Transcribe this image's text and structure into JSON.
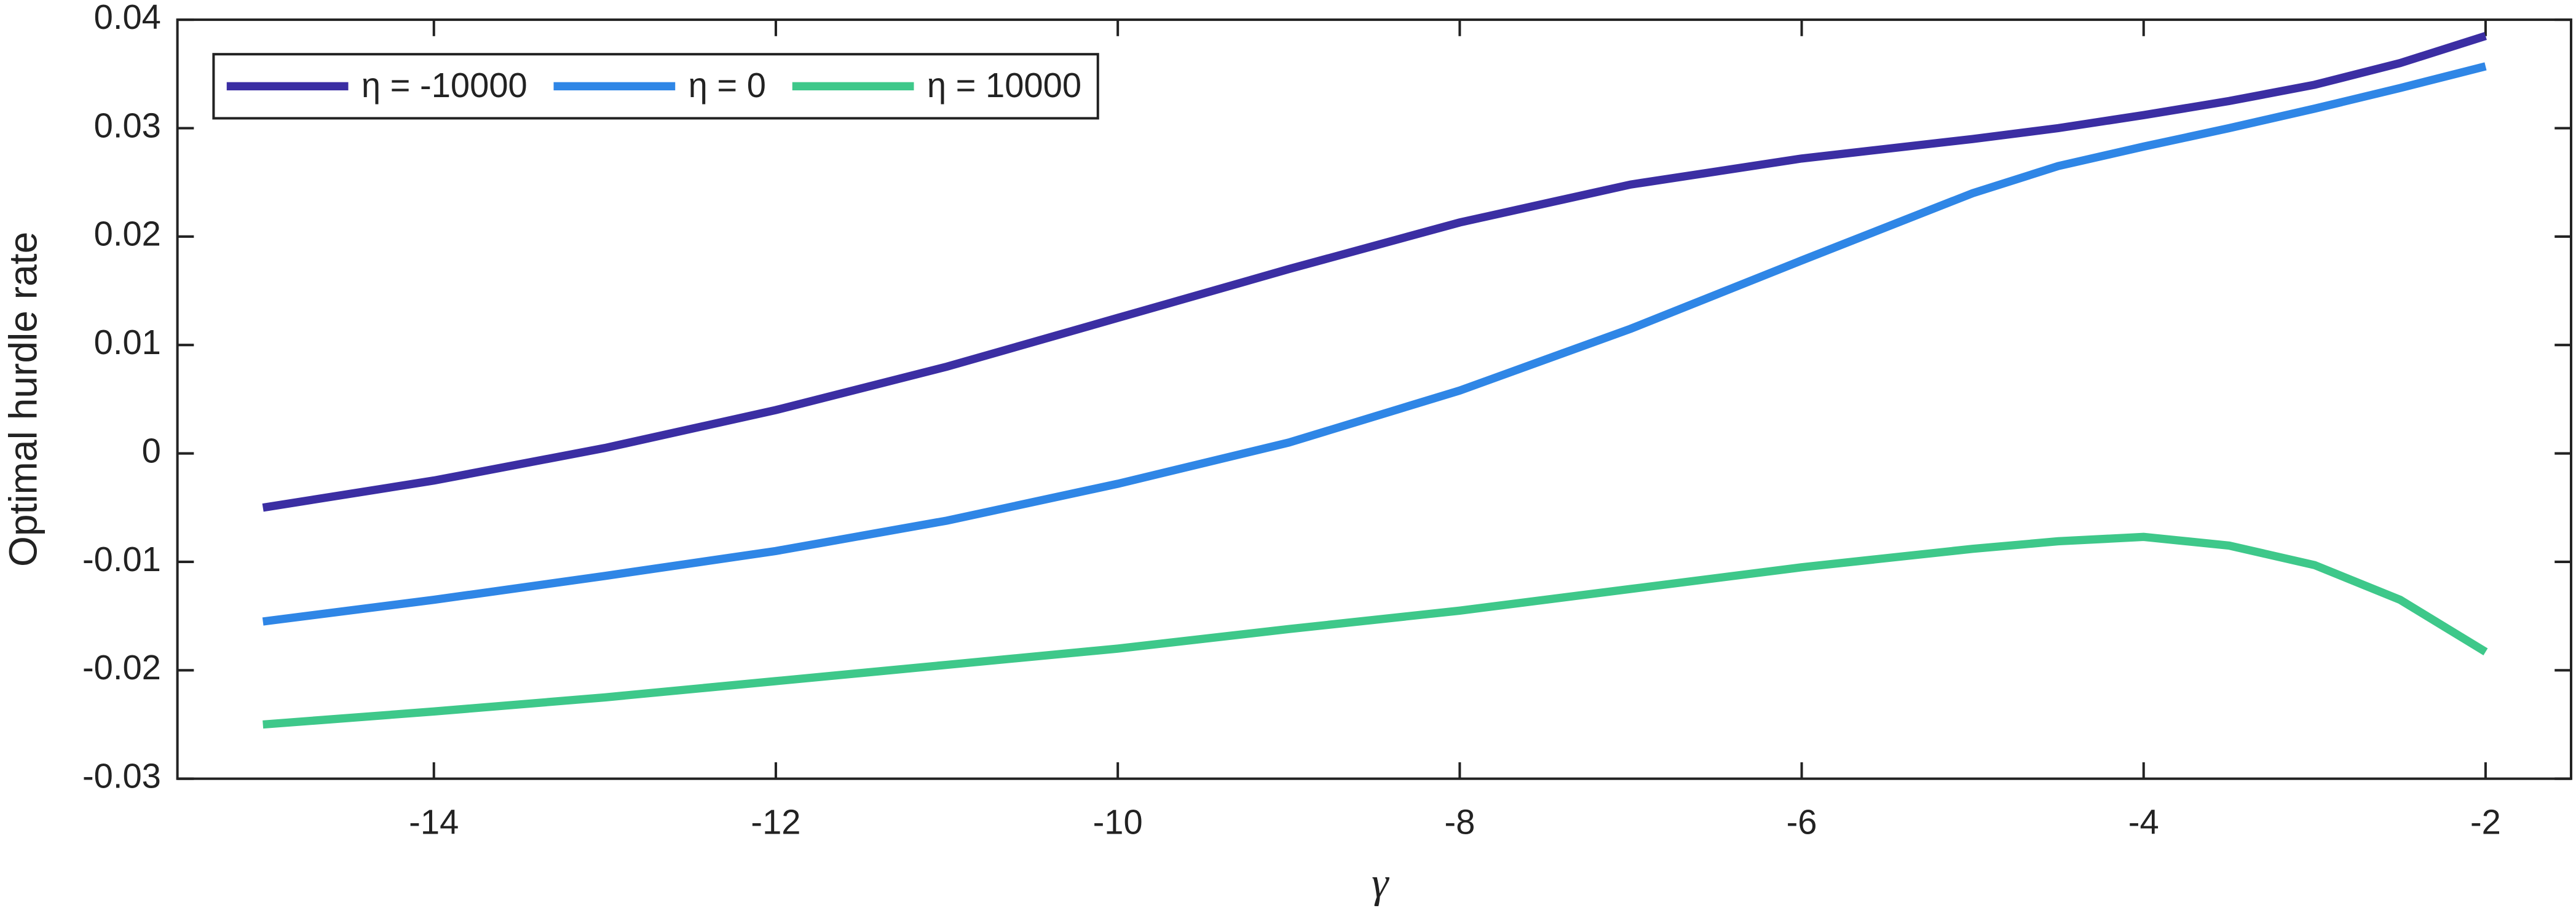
{
  "chart_data": {
    "type": "line",
    "xlabel": "γ",
    "ylabel": "Optimal hurdle rate",
    "x": [
      -15,
      -14,
      -13,
      -12,
      -11,
      -10,
      -9,
      -8,
      -7,
      -6,
      -5,
      -4.5,
      -4,
      -3.5,
      -3,
      -2.5,
      -2
    ],
    "series": [
      {
        "name": "η = -10000",
        "color": "#3b2ea3",
        "values": [
          -0.005,
          -0.0025,
          0.0005,
          0.004,
          0.008,
          0.0125,
          0.017,
          0.0213,
          0.0248,
          0.0272,
          0.029,
          0.03,
          0.0312,
          0.0325,
          0.034,
          0.036,
          0.0385
        ]
      },
      {
        "name": "η = 0",
        "color": "#2f86e6",
        "values": [
          -0.0155,
          -0.0135,
          -0.0113,
          -0.009,
          -0.0062,
          -0.0028,
          0.001,
          0.0058,
          0.0115,
          0.0178,
          0.024,
          0.0265,
          0.0283,
          0.03,
          0.0318,
          0.0337,
          0.0357
        ]
      },
      {
        "name": "η = 10000",
        "color": "#3ec88a",
        "values": [
          -0.025,
          -0.0238,
          -0.0225,
          -0.021,
          -0.0195,
          -0.018,
          -0.0162,
          -0.0145,
          -0.0125,
          -0.0105,
          -0.0088,
          -0.0081,
          -0.0077,
          -0.0085,
          -0.0103,
          -0.0135,
          -0.0183
        ]
      }
    ],
    "xlim": [
      -15.5,
      -1.5
    ],
    "ylim": [
      -0.03,
      0.04
    ],
    "xticks": [
      -14,
      -12,
      -10,
      -8,
      -6,
      -4,
      -2
    ],
    "yticks": [
      -0.03,
      -0.02,
      -0.01,
      0,
      0.01,
      0.02,
      0.03,
      0.04
    ],
    "legend": "upper left"
  }
}
